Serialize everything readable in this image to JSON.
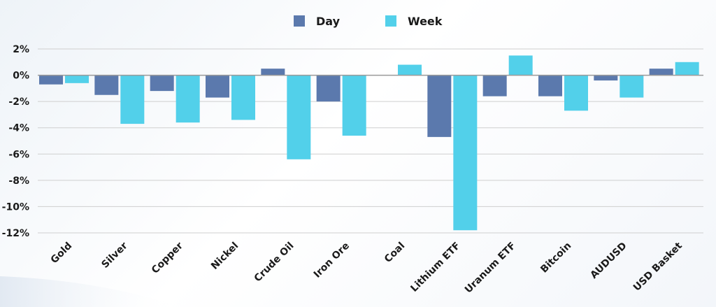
{
  "chart_data": {
    "type": "bar",
    "categories": [
      "Gold",
      "Silver",
      "Copper",
      "Nickel",
      "Crude Oil",
      "Iron Ore",
      "Coal",
      "Lithium ETF",
      "Uranum ETF",
      "Bitcoin",
      "AUDUSD",
      "USD Basket"
    ],
    "series": [
      {
        "name": "Day",
        "color": "#5b79ad",
        "values": [
          -0.7,
          -1.5,
          -1.2,
          -1.7,
          0.5,
          -2.0,
          null,
          -4.7,
          -1.6,
          -1.6,
          -0.4,
          0.5
        ]
      },
      {
        "name": "Week",
        "color": "#52d0ea",
        "values": [
          -0.6,
          -3.7,
          -3.6,
          -3.4,
          -6.4,
          -4.6,
          0.8,
          -11.8,
          1.5,
          -2.7,
          -1.7,
          1.0
        ]
      }
    ],
    "ylim": [
      -12,
      2
    ],
    "yticks": [
      2,
      0,
      -2,
      -4,
      -6,
      -8,
      -10,
      -12
    ],
    "ytick_labels": [
      "2%",
      "0%",
      "-2%",
      "-4%",
      "-6%",
      "-8%",
      "-10%",
      "-12%"
    ],
    "grid": true,
    "legend": "top-center",
    "title": "",
    "xlabel": "",
    "ylabel": ""
  }
}
